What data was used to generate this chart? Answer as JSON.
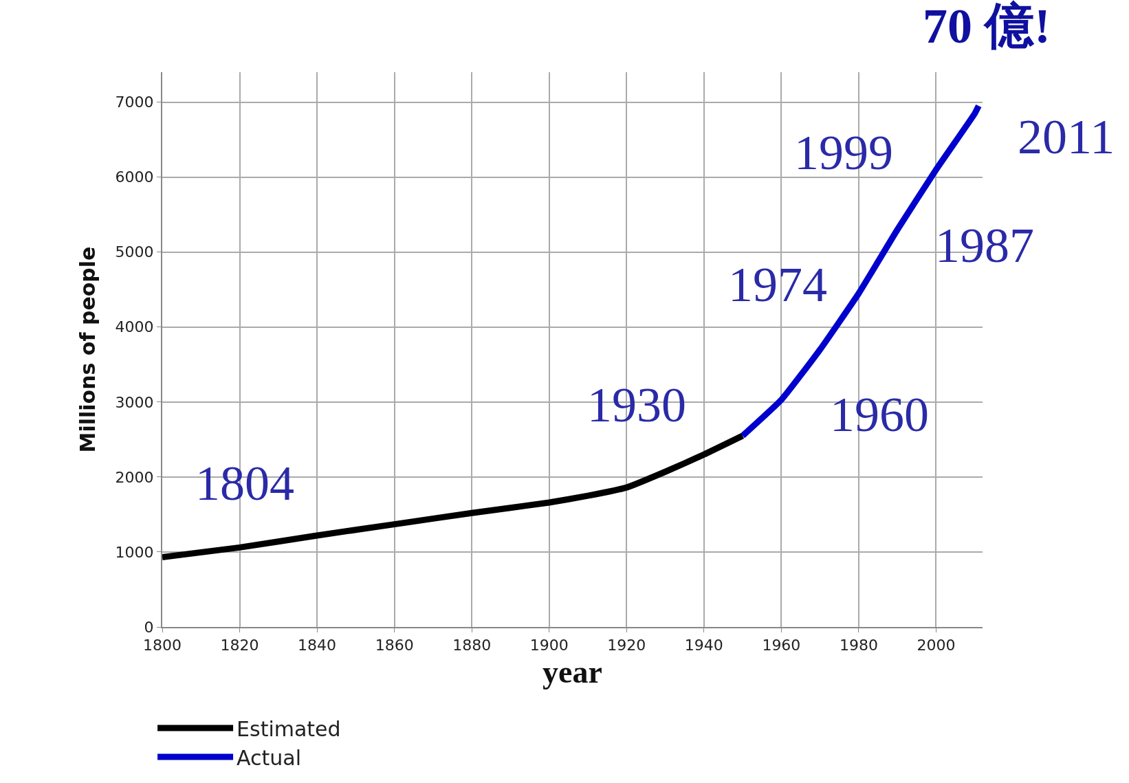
{
  "chart_data": {
    "type": "line",
    "title": "70 億!",
    "xlabel": "year",
    "ylabel": "Millions of people",
    "series": [
      {
        "name": "Estimated",
        "color": "#000000",
        "x": [
          1800,
          1820,
          1840,
          1860,
          1880,
          1900,
          1910,
          1920,
          1930,
          1940,
          1950
        ],
        "values": [
          930,
          1060,
          1220,
          1370,
          1520,
          1660,
          1750,
          1860,
          2070,
          2300,
          2550
        ]
      },
      {
        "name": "Actual",
        "color": "#0000cc",
        "x": [
          1950,
          1960,
          1970,
          1980,
          1990,
          2000,
          2010,
          2011
        ],
        "values": [
          2550,
          3030,
          3700,
          4450,
          5300,
          6100,
          6850,
          6950
        ]
      }
    ],
    "annotations": [
      "1804",
      "1930",
      "1960",
      "1974",
      "1987",
      "1999",
      "2011"
    ],
    "xlim": [
      1800,
      2012
    ],
    "xticks": [
      1800,
      1820,
      1840,
      1860,
      1880,
      1900,
      1920,
      1940,
      1960,
      1980,
      2000
    ],
    "ylim": [
      0,
      7400
    ],
    "yticks": [
      0,
      1000,
      2000,
      3000,
      4000,
      5000,
      6000,
      7000
    ],
    "grid": true,
    "legend": "bottom",
    "marker": "none",
    "line_style": "solid"
  }
}
